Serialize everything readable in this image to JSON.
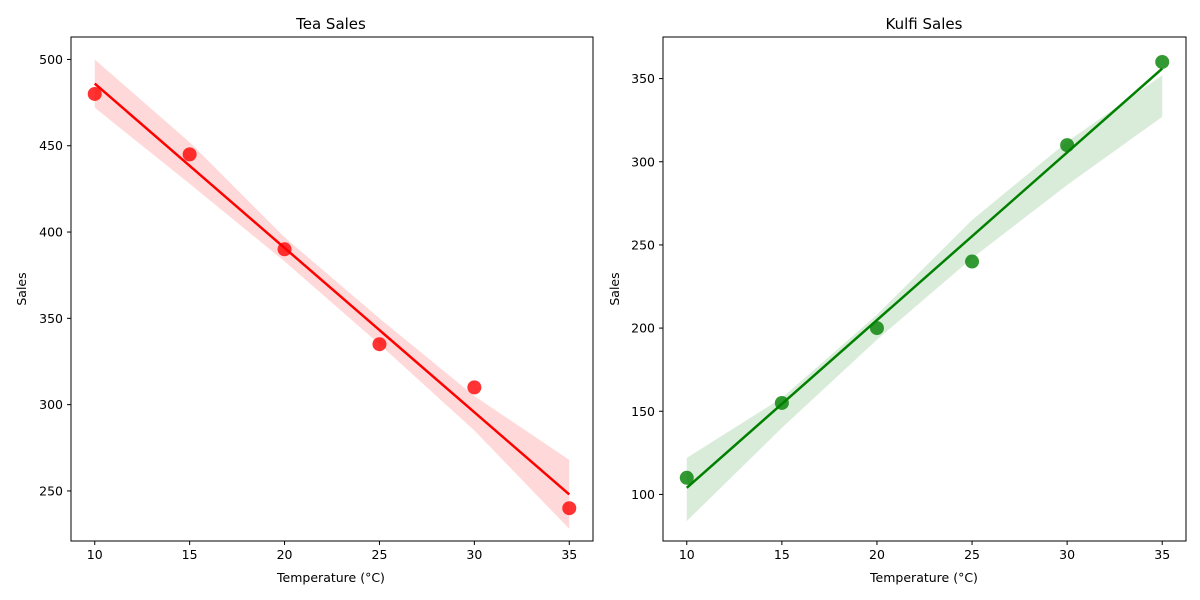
{
  "chart_data": [
    {
      "type": "scatter",
      "title": "Tea Sales",
      "xlabel": "Temperature (°C)",
      "ylabel": "Sales",
      "xlim": [
        8.75,
        36.25
      ],
      "ylim": [
        221,
        513
      ],
      "xticks": [
        10,
        15,
        20,
        25,
        30,
        35
      ],
      "yticks": [
        250,
        300,
        350,
        400,
        450,
        500
      ],
      "grid": false,
      "color": "#ff0000",
      "x": [
        10,
        15,
        20,
        25,
        30,
        35
      ],
      "y": [
        480,
        445,
        390,
        335,
        310,
        240
      ],
      "regression": {
        "x": [
          10,
          35
        ],
        "y": [
          486,
          248
        ]
      },
      "ci_lower": [
        [
          10,
          472
        ],
        [
          15,
          428
        ],
        [
          20,
          383
        ],
        [
          25,
          335
        ],
        [
          30,
          285
        ],
        [
          35,
          228
        ]
      ],
      "ci_upper": [
        [
          10,
          500
        ],
        [
          15,
          452
        ],
        [
          20,
          397
        ],
        [
          25,
          350
        ],
        [
          30,
          305
        ],
        [
          35,
          268
        ]
      ]
    },
    {
      "type": "scatter",
      "title": "Kulfi Sales",
      "xlabel": "Temperature (°C)",
      "ylabel": "Sales",
      "xlim": [
        8.75,
        36.25
      ],
      "ylim": [
        72,
        375
      ],
      "xticks": [
        10,
        15,
        20,
        25,
        30,
        35
      ],
      "yticks": [
        100,
        150,
        200,
        250,
        300,
        350
      ],
      "grid": false,
      "color": "#008000",
      "x": [
        10,
        15,
        20,
        25,
        30,
        35
      ],
      "y": [
        110,
        155,
        200,
        240,
        310,
        360
      ],
      "regression": {
        "x": [
          10,
          35
        ],
        "y": [
          104,
          356
        ]
      },
      "ci_lower": [
        [
          10,
          84
        ],
        [
          15,
          140
        ],
        [
          20,
          193
        ],
        [
          25,
          242
        ],
        [
          30,
          286
        ],
        [
          35,
          327
        ]
      ],
      "ci_upper": [
        [
          10,
          122
        ],
        [
          15,
          158
        ],
        [
          20,
          208
        ],
        [
          25,
          265
        ],
        [
          30,
          312
        ],
        [
          35,
          352
        ]
      ]
    }
  ]
}
